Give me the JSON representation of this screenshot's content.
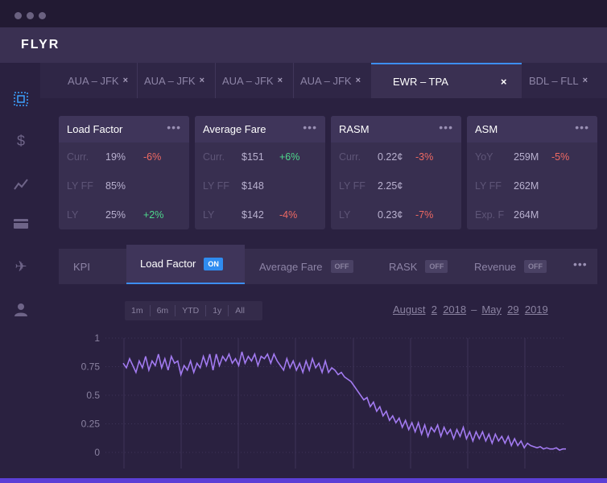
{
  "brand": "FLYR",
  "sidebar": {
    "items": [
      {
        "icon": "dashboard-icon",
        "active": true
      },
      {
        "icon": "dollar-icon",
        "active": false
      },
      {
        "icon": "trend-icon",
        "active": false
      },
      {
        "icon": "card-icon",
        "active": false
      },
      {
        "icon": "airplane-icon",
        "active": false
      },
      {
        "icon": "user-icon",
        "active": false
      }
    ]
  },
  "route_tabs": [
    {
      "label": "AUA – JFK",
      "close": "×"
    },
    {
      "label": "AUA – JFK",
      "close": "×"
    },
    {
      "label": "AUA – JFK",
      "close": "×"
    },
    {
      "label": "AUA – JFK",
      "close": "×"
    },
    {
      "label": "EWR – TPA",
      "close": "×",
      "active": true
    },
    {
      "label": "BDL – FLL",
      "close": "×"
    }
  ],
  "cards": [
    {
      "title": "Load Factor",
      "menu": "•••",
      "rows": [
        {
          "label": "Curr.",
          "value": "19%",
          "change": "-6%",
          "dir": "neg"
        },
        {
          "label": "LY FF",
          "value": "85%",
          "change": "",
          "dir": ""
        },
        {
          "label": "LY",
          "value": "25%",
          "change": "+2%",
          "dir": "pos"
        }
      ]
    },
    {
      "title": "Average Fare",
      "menu": "•••",
      "rows": [
        {
          "label": "Curr.",
          "value": "$151",
          "change": "+6%",
          "dir": "pos"
        },
        {
          "label": "LY FF",
          "value": "$148",
          "change": "",
          "dir": ""
        },
        {
          "label": "LY",
          "value": "$142",
          "change": "-4%",
          "dir": "neg"
        }
      ]
    },
    {
      "title": "RASM",
      "menu": "•••",
      "rows": [
        {
          "label": "Curr.",
          "value": "0.22¢",
          "change": "-3%",
          "dir": "neg"
        },
        {
          "label": "LY FF",
          "value": "2.25¢",
          "change": "",
          "dir": ""
        },
        {
          "label": "LY",
          "value": "0.23¢",
          "change": "-7%",
          "dir": "neg"
        }
      ]
    },
    {
      "title": "ASM",
      "menu": "•••",
      "rows": [
        {
          "label": "YoY",
          "value": "259M",
          "change": "-5%",
          "dir": "neg"
        },
        {
          "label": "LY FF",
          "value": "262M",
          "change": "",
          "dir": ""
        },
        {
          "label": "Exp. F",
          "value": "264M",
          "change": "",
          "dir": ""
        }
      ]
    }
  ],
  "panel": {
    "tabs": [
      {
        "label": "KPI",
        "badge": ""
      },
      {
        "label": "Load Factor",
        "badge": "ON",
        "active": true
      },
      {
        "label": "Average Fare",
        "badge": "OFF"
      },
      {
        "label": "RASK",
        "badge": "OFF"
      },
      {
        "label": "Revenue",
        "badge": "OFF"
      }
    ],
    "menu": "•••",
    "range_buttons": [
      "1m",
      "6m",
      "YTD",
      "1y",
      "All"
    ],
    "date_range": {
      "start_month": "August",
      "start_day": "2",
      "start_year": "2018",
      "separator": "–",
      "end_month": "May",
      "end_day": "29",
      "end_year": "2019"
    }
  },
  "chart_data": {
    "type": "line",
    "title": "",
    "xlabel": "",
    "ylabel": "",
    "ylim": [
      0,
      1
    ],
    "yticks": [
      "1",
      "0.75",
      "0.5",
      "0.25",
      "0"
    ],
    "grid": "vertical",
    "color": "#a27af0",
    "series": [
      {
        "values": [
          0.78,
          0.74,
          0.82,
          0.76,
          0.7,
          0.8,
          0.74,
          0.84,
          0.72,
          0.8,
          0.76,
          0.86,
          0.74,
          0.82,
          0.72,
          0.84,
          0.78,
          0.8,
          0.68,
          0.76,
          0.72,
          0.8,
          0.7,
          0.78,
          0.74,
          0.84,
          0.76,
          0.86,
          0.72,
          0.86,
          0.76,
          0.84,
          0.8,
          0.86,
          0.78,
          0.82,
          0.76,
          0.88,
          0.78,
          0.84,
          0.8,
          0.86,
          0.76,
          0.84,
          0.82,
          0.86,
          0.78,
          0.86,
          0.8,
          0.76,
          0.72,
          0.82,
          0.74,
          0.8,
          0.72,
          0.78,
          0.7,
          0.8,
          0.72,
          0.82,
          0.74,
          0.78,
          0.7,
          0.8,
          0.7,
          0.74,
          0.72,
          0.68,
          0.7,
          0.66,
          0.64,
          0.62,
          0.58,
          0.54,
          0.5,
          0.46,
          0.48,
          0.4,
          0.44,
          0.36,
          0.4,
          0.32,
          0.36,
          0.28,
          0.32,
          0.26,
          0.3,
          0.22,
          0.28,
          0.2,
          0.26,
          0.18,
          0.26,
          0.16,
          0.24,
          0.14,
          0.22,
          0.18,
          0.24,
          0.14,
          0.22,
          0.16,
          0.2,
          0.12,
          0.2,
          0.14,
          0.22,
          0.12,
          0.18,
          0.1,
          0.18,
          0.12,
          0.18,
          0.1,
          0.16,
          0.08,
          0.16,
          0.1,
          0.14,
          0.08,
          0.14,
          0.06,
          0.12,
          0.06,
          0.1,
          0.04,
          0.08,
          0.06,
          0.05,
          0.04,
          0.05,
          0.03,
          0.04,
          0.03,
          0.03,
          0.04,
          0.02,
          0.03,
          0.03
        ]
      }
    ]
  }
}
